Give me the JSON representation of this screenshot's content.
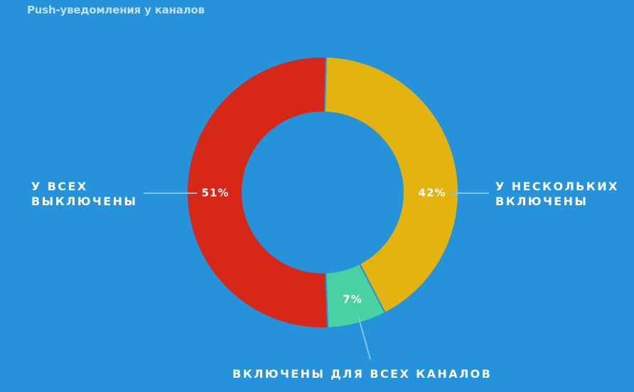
{
  "title": "Push-уведомления у каналов",
  "chart_data": {
    "type": "pie",
    "donut": true,
    "title": "Push-уведомления у каналов",
    "start_offset_percent": 0.4,
    "slices": [
      {
        "label": "У НЕСКОЛЬКИХ ВКЛЮЧЕНЫ",
        "label_lines": [
          "У НЕСКОЛЬКИХ",
          "ВКЛЮЧЕНЫ"
        ],
        "value": 42,
        "display": "42%",
        "color": "#e3b30f"
      },
      {
        "label": "ВКЛЮЧЕНЫ ДЛЯ ВСЕХ КАНАЛОВ",
        "label_lines": [
          "ВКЛЮЧЕНЫ ДЛЯ ВСЕХ КАНАЛОВ"
        ],
        "value": 7,
        "display": "7%",
        "color": "#48d1a3"
      },
      {
        "label": "У ВСЕХ ВЫКЛЮЧЕНЫ",
        "label_lines": [
          "У ВСЕХ",
          "ВЫКЛЮЧЕНЫ"
        ],
        "value": 51,
        "display": "51%",
        "color": "#d62718"
      }
    ],
    "leader_line_color": "#7cc6f0"
  }
}
